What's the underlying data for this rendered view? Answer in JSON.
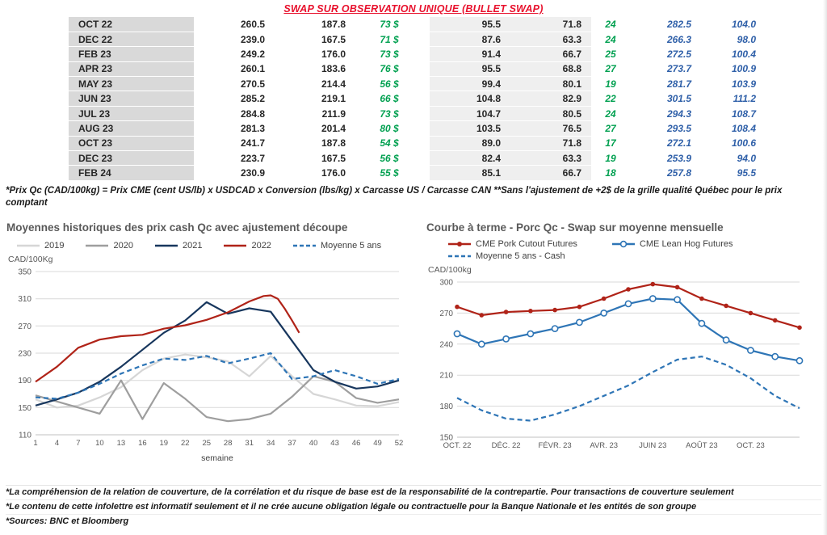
{
  "page": {
    "title": "SWAP SUR OBSERVATION UNIQUE (BULLET SWAP)",
    "table_footnote": "*Prix Qc (CAD/100kg) = Prix CME (cent US/lb) x USDCAD x Conversion (lbs/kg) x Carcasse US / Carcasse CAN **Sans l'ajustement de +2$ de la grille qualité Québec pour le prix comptant",
    "footnotes": [
      "*La compréhension de la relation de couverture, de la corrélation et du risque de base est de la responsabilité de la contrepartie. Pour transactions de couverture seulement",
      "*Le contenu de cette infolettre est informatif seulement et il ne crée aucune obligation légale ou contractuelle pour la Banque Nationale et les entités de son groupe",
      "*Sources: BNC et Bloomberg"
    ]
  },
  "colors": {
    "title_red": "#e8112d",
    "swap_green": "#00a050",
    "forward_blue": "#2e5fa8",
    "month_column_bg": "#d9d9d9",
    "us_columns_bg": "#efefef"
  },
  "table": {
    "columns": [
      "month",
      "qc-price",
      "qc-reference",
      "swap-value-cad",
      "us-price",
      "us-reference",
      "swap-value-us",
      "forward-qc",
      "forward-us"
    ],
    "rows": [
      [
        "OCT 22",
        "260.5",
        "187.8",
        "73 $",
        "95.5",
        "71.8",
        "24",
        "282.5",
        "104.0"
      ],
      [
        "DEC 22",
        "239.0",
        "167.5",
        "71 $",
        "87.6",
        "63.3",
        "24",
        "266.3",
        "98.0"
      ],
      [
        "FEB 23",
        "249.2",
        "176.0",
        "73 $",
        "91.4",
        "66.7",
        "25",
        "272.5",
        "100.4"
      ],
      [
        "APR 23",
        "260.1",
        "183.6",
        "76 $",
        "95.5",
        "68.8",
        "27",
        "273.7",
        "100.9"
      ],
      [
        "MAY 23",
        "270.5",
        "214.4",
        "56 $",
        "99.4",
        "80.1",
        "19",
        "281.7",
        "103.9"
      ],
      [
        "JUN 23",
        "285.2",
        "219.1",
        "66 $",
        "104.8",
        "82.9",
        "22",
        "301.5",
        "111.2"
      ],
      [
        "JUL 23",
        "284.8",
        "211.9",
        "73 $",
        "104.7",
        "80.5",
        "24",
        "294.3",
        "108.7"
      ],
      [
        "AUG 23",
        "281.3",
        "201.4",
        "80 $",
        "103.5",
        "76.5",
        "27",
        "293.5",
        "108.4"
      ],
      [
        "OCT 23",
        "241.7",
        "187.8",
        "54 $",
        "89.0",
        "71.8",
        "17",
        "272.1",
        "100.6"
      ],
      [
        "DEC 23",
        "223.7",
        "167.5",
        "56 $",
        "82.4",
        "63.3",
        "19",
        "253.9",
        "94.0"
      ],
      [
        "FEB 24",
        "230.9",
        "176.0",
        "55 $",
        "85.1",
        "66.7",
        "18",
        "257.8",
        "95.5"
      ]
    ]
  },
  "chart_data": [
    {
      "type": "line",
      "title": "Moyennes historiques des prix cash Qc avec ajustement découpe",
      "ylabel": "CAD/100Kg",
      "xlabel": "semaine",
      "xlim": [
        1,
        52
      ],
      "ylim": [
        110,
        350
      ],
      "yticks": [
        110,
        150,
        190,
        230,
        270,
        310,
        350
      ],
      "xticks": [
        1,
        4,
        7,
        10,
        13,
        16,
        19,
        22,
        25,
        28,
        31,
        34,
        37,
        40,
        43,
        46,
        49,
        52
      ],
      "grid": "horizontal",
      "legend_position": "top",
      "series": [
        {
          "name": "2019",
          "color": "#d6d6d6",
          "style": "solid",
          "x": [
            1,
            4,
            7,
            10,
            13,
            16,
            19,
            22,
            25,
            28,
            31,
            34,
            37,
            40,
            43,
            46,
            49,
            52
          ],
          "values": [
            162,
            150,
            153,
            165,
            180,
            205,
            222,
            228,
            224,
            218,
            196,
            226,
            196,
            170,
            162,
            153,
            152,
            158
          ]
        },
        {
          "name": "2020",
          "color": "#9e9e9e",
          "style": "solid",
          "x": [
            1,
            4,
            7,
            10,
            13,
            16,
            19,
            22,
            25,
            28,
            31,
            34,
            37,
            40,
            43,
            46,
            49,
            52
          ],
          "values": [
            168,
            159,
            150,
            141,
            190,
            133,
            186,
            163,
            136,
            130,
            133,
            141,
            166,
            196,
            188,
            164,
            157,
            162
          ]
        },
        {
          "name": "2021",
          "color": "#17365d",
          "style": "solid",
          "x": [
            1,
            4,
            7,
            10,
            13,
            16,
            19,
            22,
            25,
            28,
            31,
            34,
            37,
            40,
            43,
            46,
            49,
            52
          ],
          "values": [
            153,
            162,
            172,
            188,
            210,
            235,
            260,
            278,
            305,
            288,
            296,
            291,
            248,
            205,
            188,
            178,
            181,
            190
          ]
        },
        {
          "name": "2022",
          "color": "#b02318",
          "style": "solid",
          "x": [
            1,
            4,
            7,
            10,
            13,
            16,
            19,
            22,
            25,
            28,
            31,
            33,
            34,
            35,
            36,
            37,
            38
          ],
          "values": [
            188,
            210,
            238,
            250,
            255,
            257,
            266,
            271,
            279,
            290,
            306,
            314,
            315,
            310,
            295,
            278,
            260
          ]
        },
        {
          "name": "Moyenne 5 ans",
          "color": "#2e75b6",
          "style": "dashed",
          "x": [
            1,
            4,
            7,
            10,
            13,
            16,
            19,
            22,
            25,
            28,
            31,
            34,
            37,
            40,
            43,
            46,
            49,
            52
          ],
          "values": [
            165,
            163,
            172,
            185,
            200,
            212,
            222,
            220,
            226,
            215,
            222,
            230,
            192,
            196,
            205,
            196,
            185,
            192
          ]
        }
      ]
    },
    {
      "type": "line",
      "title": "Courbe à terme - Porc Qc - Swap sur moyenne mensuelle",
      "ylabel": "CAD/100kg",
      "xlabel": "",
      "xlim": [
        0,
        14
      ],
      "ylim": [
        150,
        300
      ],
      "yticks": [
        150,
        180,
        210,
        240,
        270,
        300
      ],
      "xticks": [
        {
          "v": 0,
          "label": "OCT. 22"
        },
        {
          "v": 2,
          "label": "DÉC. 22"
        },
        {
          "v": 4,
          "label": "FÉVR. 23"
        },
        {
          "v": 6,
          "label": "AVR. 23"
        },
        {
          "v": 8,
          "label": "JUIN 23"
        },
        {
          "v": 10,
          "label": "AOÛT 23"
        },
        {
          "v": 12,
          "label": "OCT. 23"
        }
      ],
      "grid": "horizontal",
      "legend_position": "top",
      "series": [
        {
          "name": "CME Pork Cutout Futures",
          "color": "#b02318",
          "style": "solid",
          "marker": "dot",
          "x": [
            0,
            1,
            2,
            3,
            4,
            5,
            6,
            7,
            8,
            9,
            10,
            11,
            12,
            13,
            14
          ],
          "values": [
            276,
            268,
            271,
            272,
            273,
            276,
            284,
            293,
            298,
            295,
            284,
            277,
            270,
            263,
            256
          ]
        },
        {
          "name": "CME Lean Hog Futures",
          "color": "#2e75b6",
          "style": "solid",
          "marker": "ring",
          "x": [
            0,
            1,
            2,
            3,
            4,
            5,
            6,
            7,
            8,
            9,
            10,
            11,
            12,
            13,
            14
          ],
          "values": [
            250,
            240,
            245,
            250,
            255,
            261,
            270,
            279,
            284,
            283,
            260,
            244,
            234,
            228,
            224
          ]
        },
        {
          "name": "Moyenne 5 ans - Cash",
          "color": "#2e75b6",
          "style": "dashed",
          "x": [
            0,
            1,
            2,
            3,
            4,
            5,
            6,
            7,
            8,
            9,
            10,
            11,
            12,
            13,
            14
          ],
          "values": [
            188,
            176,
            168,
            166,
            172,
            180,
            190,
            200,
            213,
            225,
            228,
            220,
            207,
            190,
            178
          ]
        }
      ]
    }
  ]
}
